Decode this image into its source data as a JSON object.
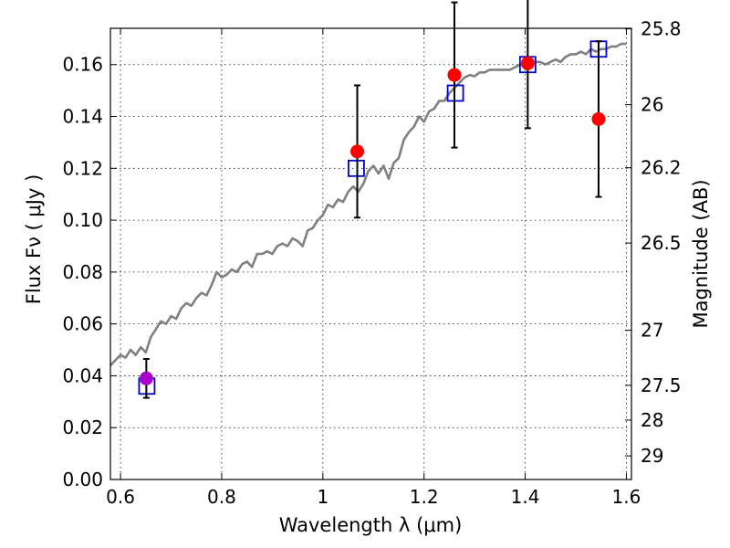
{
  "chart_data": {
    "type": "scatter",
    "xlabel": "Wavelength  λ (μm)",
    "ylabel": "Flux  Fν  ( μJy )",
    "ylabel_right": "Magnitude (AB)",
    "xlim": [
      0.58,
      1.61
    ],
    "ylim": [
      0.0,
      0.174
    ],
    "grid": true,
    "x_ticks": [
      {
        "value": 0.6,
        "label": "0.6"
      },
      {
        "value": 0.8,
        "label": "0.8"
      },
      {
        "value": 1.0,
        "label": "1"
      },
      {
        "value": 1.2,
        "label": "1.2"
      },
      {
        "value": 1.4,
        "label": "1.4"
      },
      {
        "value": 1.6,
        "label": "1.6"
      }
    ],
    "y_ticks": [
      {
        "value": 0.0,
        "label": "0.00"
      },
      {
        "value": 0.02,
        "label": "0.02"
      },
      {
        "value": 0.04,
        "label": "0.04"
      },
      {
        "value": 0.06,
        "label": "0.06"
      },
      {
        "value": 0.08,
        "label": "0.08"
      },
      {
        "value": 0.1,
        "label": "0.10"
      },
      {
        "value": 0.12,
        "label": "0.12"
      },
      {
        "value": 0.14,
        "label": "0.14"
      },
      {
        "value": 0.16,
        "label": "0.16"
      }
    ],
    "right_ticks": [
      {
        "label": "25.8",
        "mag": 25.8
      },
      {
        "label": "26",
        "mag": 26.0
      },
      {
        "label": "26.2",
        "mag": 26.2
      },
      {
        "label": "26.5",
        "mag": 26.5
      },
      {
        "label": "27",
        "mag": 27.0
      },
      {
        "label": "27.5",
        "mag": 27.5
      },
      {
        "label": "28",
        "mag": 28.0
      },
      {
        "label": "29",
        "mag": 29.0
      }
    ],
    "series": [
      {
        "kind": "line",
        "color": "#808080",
        "points": [
          [
            0.58,
            0.044
          ],
          [
            0.59,
            0.046
          ],
          [
            0.6,
            0.048
          ],
          [
            0.61,
            0.047
          ],
          [
            0.62,
            0.05
          ],
          [
            0.63,
            0.048
          ],
          [
            0.64,
            0.051
          ],
          [
            0.65,
            0.049
          ],
          [
            0.66,
            0.055
          ],
          [
            0.67,
            0.058
          ],
          [
            0.68,
            0.061
          ],
          [
            0.69,
            0.06
          ],
          [
            0.7,
            0.063
          ],
          [
            0.71,
            0.062
          ],
          [
            0.72,
            0.066
          ],
          [
            0.73,
            0.068
          ],
          [
            0.74,
            0.067
          ],
          [
            0.75,
            0.07
          ],
          [
            0.76,
            0.072
          ],
          [
            0.77,
            0.071
          ],
          [
            0.78,
            0.075
          ],
          [
            0.79,
            0.08
          ],
          [
            0.8,
            0.078
          ],
          [
            0.81,
            0.079
          ],
          [
            0.82,
            0.081
          ],
          [
            0.83,
            0.08
          ],
          [
            0.84,
            0.083
          ],
          [
            0.85,
            0.084
          ],
          [
            0.86,
            0.082
          ],
          [
            0.87,
            0.087
          ],
          [
            0.88,
            0.087
          ],
          [
            0.89,
            0.088
          ],
          [
            0.9,
            0.087
          ],
          [
            0.91,
            0.09
          ],
          [
            0.92,
            0.091
          ],
          [
            0.93,
            0.09
          ],
          [
            0.94,
            0.093
          ],
          [
            0.95,
            0.092
          ],
          [
            0.96,
            0.09
          ],
          [
            0.97,
            0.096
          ],
          [
            0.98,
            0.097
          ],
          [
            0.99,
            0.1
          ],
          [
            1.0,
            0.102
          ],
          [
            1.01,
            0.106
          ],
          [
            1.02,
            0.105
          ],
          [
            1.03,
            0.108
          ],
          [
            1.04,
            0.107
          ],
          [
            1.05,
            0.111
          ],
          [
            1.06,
            0.113
          ],
          [
            1.07,
            0.111
          ],
          [
            1.08,
            0.114
          ],
          [
            1.09,
            0.119
          ],
          [
            1.1,
            0.121
          ],
          [
            1.11,
            0.118
          ],
          [
            1.12,
            0.121
          ],
          [
            1.13,
            0.116
          ],
          [
            1.14,
            0.122
          ],
          [
            1.15,
            0.124
          ],
          [
            1.16,
            0.131
          ],
          [
            1.17,
            0.134
          ],
          [
            1.18,
            0.136
          ],
          [
            1.19,
            0.14
          ],
          [
            1.2,
            0.138
          ],
          [
            1.21,
            0.142
          ],
          [
            1.22,
            0.143
          ],
          [
            1.23,
            0.146
          ],
          [
            1.24,
            0.146
          ],
          [
            1.25,
            0.149
          ],
          [
            1.26,
            0.151
          ],
          [
            1.27,
            0.153
          ],
          [
            1.28,
            0.155
          ],
          [
            1.29,
            0.156
          ],
          [
            1.3,
            0.1555
          ],
          [
            1.31,
            0.157
          ],
          [
            1.32,
            0.157
          ],
          [
            1.33,
            0.158
          ],
          [
            1.34,
            0.158
          ],
          [
            1.35,
            0.158
          ],
          [
            1.36,
            0.158
          ],
          [
            1.37,
            0.158
          ],
          [
            1.38,
            0.159
          ],
          [
            1.39,
            0.16
          ],
          [
            1.4,
            0.16
          ],
          [
            1.41,
            0.16
          ],
          [
            1.42,
            0.161
          ],
          [
            1.43,
            0.161
          ],
          [
            1.44,
            0.16
          ],
          [
            1.45,
            0.161
          ],
          [
            1.46,
            0.162
          ],
          [
            1.47,
            0.161
          ],
          [
            1.48,
            0.163
          ],
          [
            1.49,
            0.164
          ],
          [
            1.5,
            0.164
          ],
          [
            1.51,
            0.165
          ],
          [
            1.52,
            0.164
          ],
          [
            1.53,
            0.166
          ],
          [
            1.54,
            0.165
          ],
          [
            1.55,
            0.166
          ],
          [
            1.56,
            0.166
          ],
          [
            1.57,
            0.167
          ],
          [
            1.58,
            0.167
          ],
          [
            1.59,
            0.168
          ],
          [
            1.6,
            0.168
          ]
        ]
      },
      {
        "kind": "model_boxes",
        "color": "#0000cc",
        "points": [
          [
            0.652,
            0.036
          ],
          [
            1.066,
            0.12
          ],
          [
            1.262,
            0.149
          ],
          [
            1.405,
            0.16
          ],
          [
            1.545,
            0.166
          ]
        ]
      },
      {
        "kind": "observed",
        "color": "#ff0000",
        "points": [
          {
            "x": 1.068,
            "y": 0.1265,
            "err": 0.0255
          },
          {
            "x": 1.26,
            "y": 0.156,
            "err": 0.028
          },
          {
            "x": 1.405,
            "y": 0.1605,
            "err": 0.025
          },
          {
            "x": 1.545,
            "y": 0.139,
            "err": 0.03
          }
        ]
      },
      {
        "kind": "observed",
        "color": "#aa00cc",
        "points": [
          {
            "x": 0.651,
            "y": 0.039,
            "err": 0.0075
          }
        ]
      }
    ]
  }
}
